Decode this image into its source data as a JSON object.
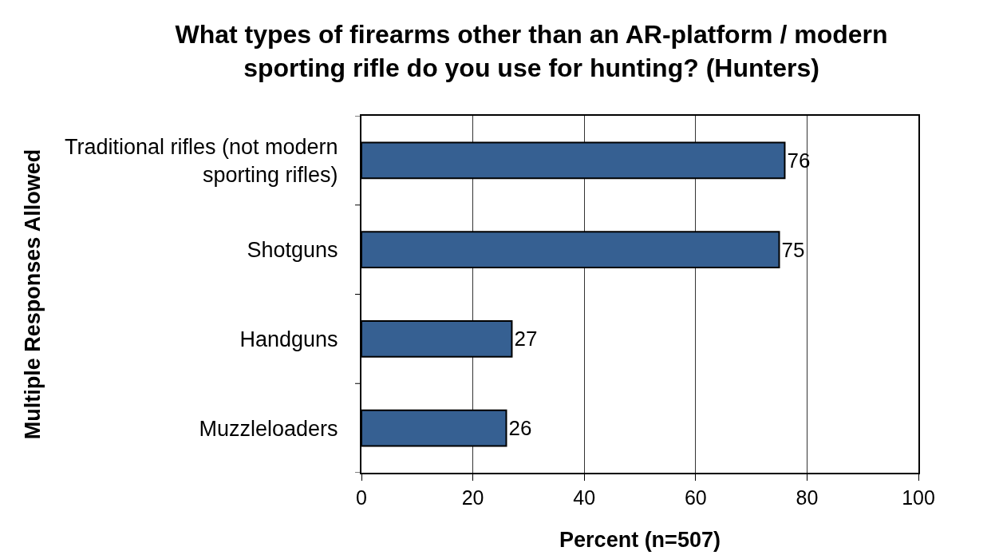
{
  "chart_data": {
    "type": "bar",
    "orientation": "horizontal",
    "title": "What types of firearms other than an AR-platform / modern sporting rifle do you use for hunting? (Hunters)",
    "xlabel": "Percent (n=507)",
    "ylabel": "Multiple Responses Allowed",
    "categories": [
      "Traditional rifles (not modern sporting rifles)",
      "Shotguns",
      "Handguns",
      "Muzzleloaders"
    ],
    "values": [
      76,
      75,
      27,
      26
    ],
    "color": "#366092",
    "xlim": [
      0,
      100
    ],
    "xticks": [
      0,
      20,
      40,
      60,
      80,
      100
    ],
    "grid": "x",
    "data_labels": true
  }
}
